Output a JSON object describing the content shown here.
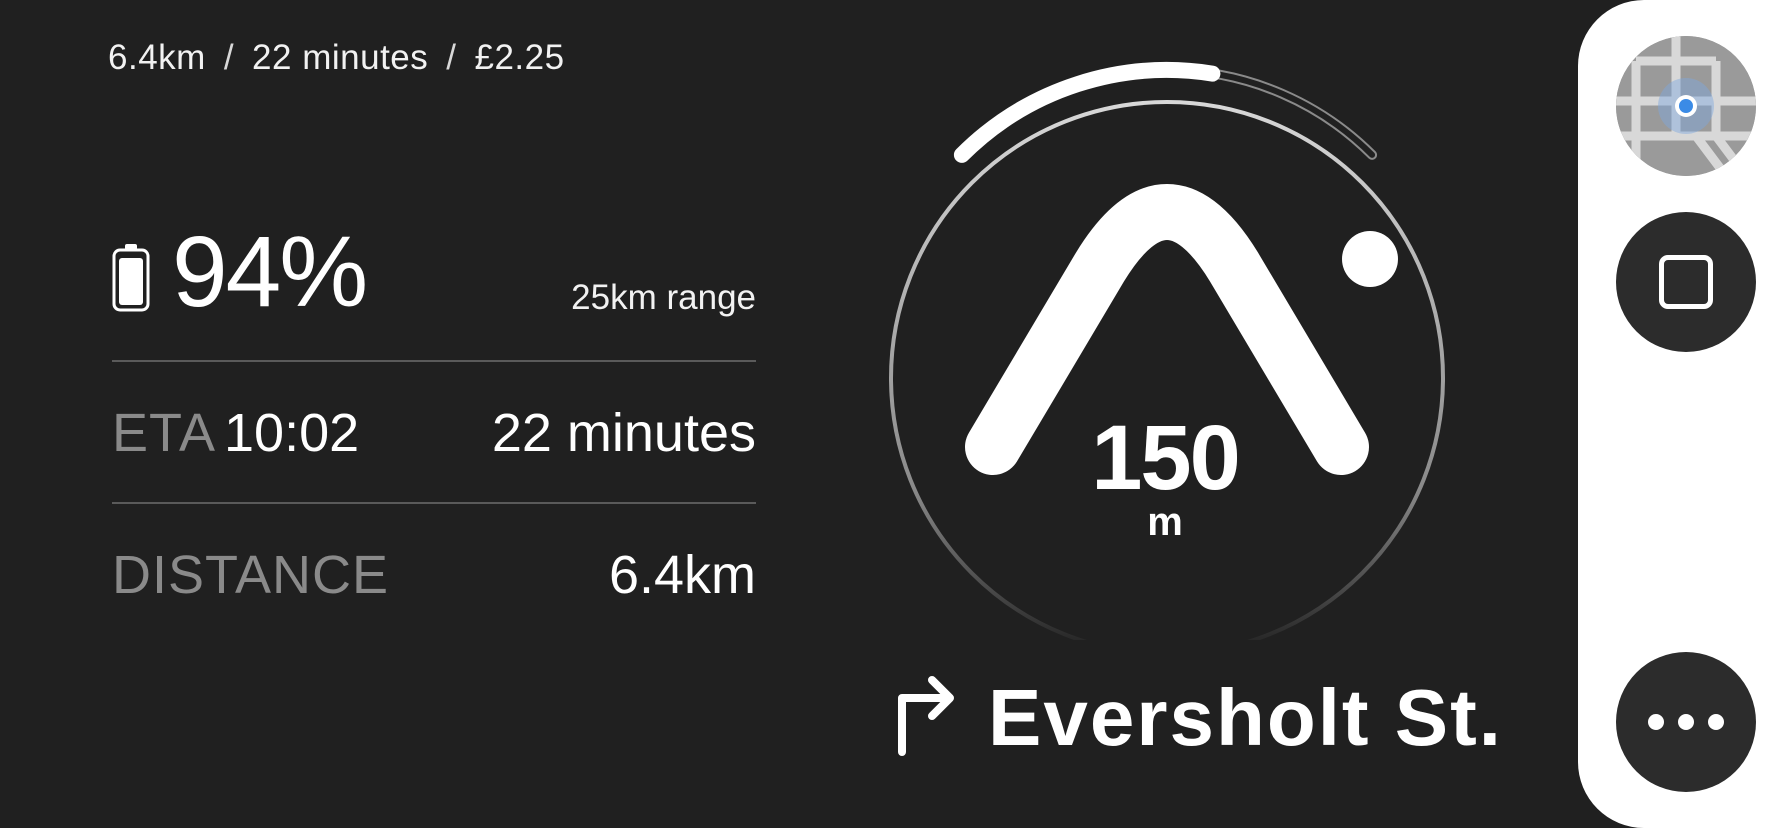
{
  "summary": {
    "distance": "6.4km",
    "duration": "22 minutes",
    "cost": "£2.25",
    "separator": "/"
  },
  "battery": {
    "percent_label": "94%",
    "level": 0.94,
    "range_label": "25km range"
  },
  "eta": {
    "label": "ETA",
    "time": "10:02",
    "duration": "22 minutes"
  },
  "distance": {
    "label": "DISTANCE",
    "value": "6.4km"
  },
  "maneuver": {
    "distance_value": "150",
    "distance_unit": "m",
    "street": "Eversholt St.",
    "progress": 0.6
  },
  "controls": {
    "map_icon": "map-icon",
    "stop_icon": "stop-icon",
    "more_icon": "more-options-icon"
  },
  "colors": {
    "background": "#202020",
    "text": "#ffffff",
    "muted": "#8a8a8a",
    "panel": "#ffffff",
    "button": "#2c2c2c",
    "location_dot": "#3b8be6"
  }
}
